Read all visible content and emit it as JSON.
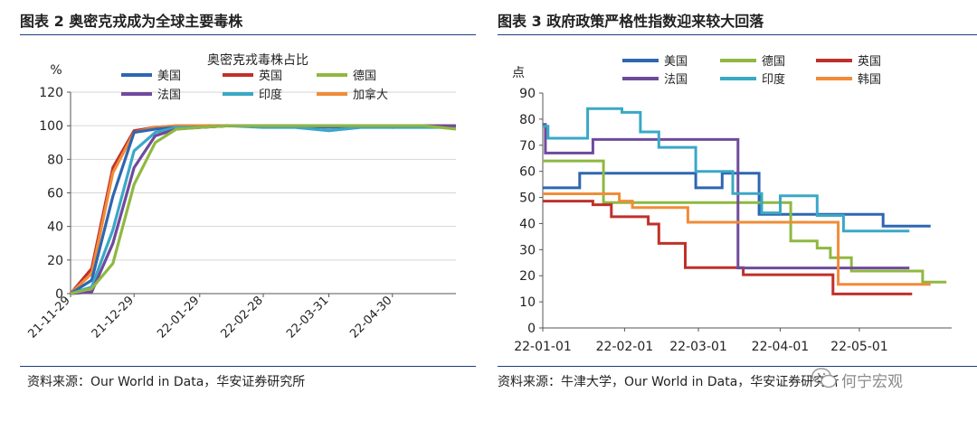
{
  "left_panel": {
    "figure_title": "图表 2 奥密克戎成为全球主要毒株",
    "source": "资料来源：Our World in Data，华安证券研究所"
  },
  "right_panel": {
    "figure_title": "图表 3 政府政策严格性指数迎来较大回落",
    "source": "资料来源：牛津大学，Our World in Data，华安证券研究所"
  },
  "watermark": {
    "text": "何宁宏观"
  },
  "colors": {
    "美国": "#2e66b1",
    "英国": "#c0302a",
    "德国": "#8fb840",
    "法国": "#6f4a9c",
    "印度": "#3aa8c6",
    "加拿大": "#f08c38",
    "韩国": "#f08c38"
  },
  "chart_data": [
    {
      "type": "line",
      "title": "奥密克戎毒株占比",
      "ylabel": "%",
      "xlabel": "",
      "ylim": [
        0,
        120
      ],
      "yticks": [
        0,
        20,
        40,
        60,
        80,
        100,
        120
      ],
      "xlim": [
        "2021-11-29",
        "2022-05-30"
      ],
      "xticks": [
        "21-11-29",
        "21-12-29",
        "22-01-29",
        "22-02-28",
        "22-03-31",
        "22-04-30"
      ],
      "xtick_dates": [
        "2021-11-29",
        "2021-12-29",
        "2022-01-29",
        "2022-02-28",
        "2022-03-31",
        "2022-04-30"
      ],
      "grid": "horizontal",
      "legend": "top",
      "legend_order": [
        "美国",
        "英国",
        "德国",
        "法国",
        "印度",
        "加拿大"
      ],
      "x": [
        "2021-11-29",
        "2021-12-09",
        "2021-12-19",
        "2021-12-29",
        "2022-01-08",
        "2022-01-18",
        "2022-01-29",
        "2022-02-12",
        "2022-02-28",
        "2022-03-15",
        "2022-03-31",
        "2022-04-15",
        "2022-04-30",
        "2022-05-15",
        "2022-05-30"
      ],
      "series": [
        {
          "name": "英国",
          "values": [
            0,
            15,
            75,
            97,
            99,
            100,
            100,
            100,
            100,
            100,
            100,
            100,
            100,
            100,
            100
          ]
        },
        {
          "name": "加拿大",
          "values": [
            0,
            12,
            72,
            96,
            99,
            100,
            100,
            100,
            100,
            100,
            100,
            100,
            100,
            100,
            100
          ]
        },
        {
          "name": "美国",
          "values": [
            0,
            8,
            58,
            96,
            98,
            99,
            99,
            100,
            100,
            100,
            99,
            100,
            99,
            100,
            99
          ]
        },
        {
          "name": "印度",
          "values": [
            0,
            4,
            38,
            85,
            96,
            99,
            99,
            100,
            99,
            99,
            97,
            99,
            99,
            99,
            99
          ]
        },
        {
          "name": "法国",
          "values": [
            0,
            1,
            30,
            75,
            94,
            98,
            99,
            100,
            100,
            100,
            100,
            100,
            100,
            100,
            100
          ]
        },
        {
          "name": "德国",
          "values": [
            0,
            3,
            18,
            65,
            90,
            98,
            99,
            100,
            100,
            100,
            100,
            100,
            100,
            100,
            98
          ]
        }
      ]
    },
    {
      "type": "line",
      "title": "",
      "ylabel": "点",
      "xlabel": "",
      "ylim": [
        0,
        90
      ],
      "yticks": [
        0,
        10,
        20,
        30,
        40,
        50,
        60,
        70,
        80,
        90
      ],
      "xlim": [
        "2022-01-01",
        "2022-06-05"
      ],
      "xticks": [
        "22-01-01",
        "22-02-01",
        "22-03-01",
        "22-04-01",
        "22-05-01"
      ],
      "xtick_dates": [
        "2022-01-01",
        "2022-02-01",
        "2022-03-01",
        "2022-04-01",
        "2022-05-01"
      ],
      "grid": "none",
      "legend": "top",
      "legend_order": [
        "美国",
        "德国",
        "英国",
        "法国",
        "印度",
        "韩国"
      ],
      "step": true,
      "series": [
        {
          "name": "美国",
          "points": [
            [
              "2022-01-01",
              53.7
            ],
            [
              "2022-01-15",
              59.3
            ],
            [
              "2022-02-28",
              53.7
            ],
            [
              "2022-03-10",
              59.3
            ],
            [
              "2022-03-24",
              43.5
            ],
            [
              "2022-05-10",
              39
            ],
            [
              "2022-05-28",
              39
            ]
          ]
        },
        {
          "name": "德国",
          "points": [
            [
              "2022-01-01",
              64
            ],
            [
              "2022-01-24",
              48
            ],
            [
              "2022-04-05",
              33.3
            ],
            [
              "2022-04-15",
              30.6
            ],
            [
              "2022-04-20",
              26.9
            ],
            [
              "2022-04-28",
              21.8
            ],
            [
              "2022-05-15",
              21.8
            ],
            [
              "2022-05-25",
              17.6
            ],
            [
              "2022-06-03",
              17.6
            ]
          ]
        },
        {
          "name": "英国",
          "points": [
            [
              "2022-01-01",
              48.6
            ],
            [
              "2022-01-20",
              47.2
            ],
            [
              "2022-01-27",
              42.6
            ],
            [
              "2022-02-10",
              39.8
            ],
            [
              "2022-02-14",
              32.4
            ],
            [
              "2022-02-24",
              23.1
            ],
            [
              "2022-03-18",
              20.4
            ],
            [
              "2022-04-21",
              13
            ],
            [
              "2022-05-21",
              13
            ]
          ]
        },
        {
          "name": "法国",
          "points": [
            [
              "2022-01-01",
              78
            ],
            [
              "2022-01-02",
              67
            ],
            [
              "2022-01-20",
              72.2
            ],
            [
              "2022-03-16",
              23
            ],
            [
              "2022-05-20",
              23
            ]
          ]
        },
        {
          "name": "印度",
          "points": [
            [
              "2022-01-01",
              77.3
            ],
            [
              "2022-01-03",
              72.7
            ],
            [
              "2022-01-18",
              84
            ],
            [
              "2022-01-31",
              82.6
            ],
            [
              "2022-02-07",
              75.1
            ],
            [
              "2022-02-14",
              69.2
            ],
            [
              "2022-02-28",
              60
            ],
            [
              "2022-03-14",
              51.5
            ],
            [
              "2022-03-25",
              44.1
            ],
            [
              "2022-04-01",
              50.6
            ],
            [
              "2022-04-15",
              43.1
            ],
            [
              "2022-04-25",
              37.1
            ],
            [
              "2022-05-20",
              37.1
            ]
          ]
        },
        {
          "name": "韩国",
          "points": [
            [
              "2022-01-01",
              51.4
            ],
            [
              "2022-01-30",
              48.6
            ],
            [
              "2022-02-04",
              46.1
            ],
            [
              "2022-02-25",
              40.5
            ],
            [
              "2022-04-23",
              16.7
            ],
            [
              "2022-05-28",
              16.7
            ]
          ]
        }
      ]
    }
  ]
}
